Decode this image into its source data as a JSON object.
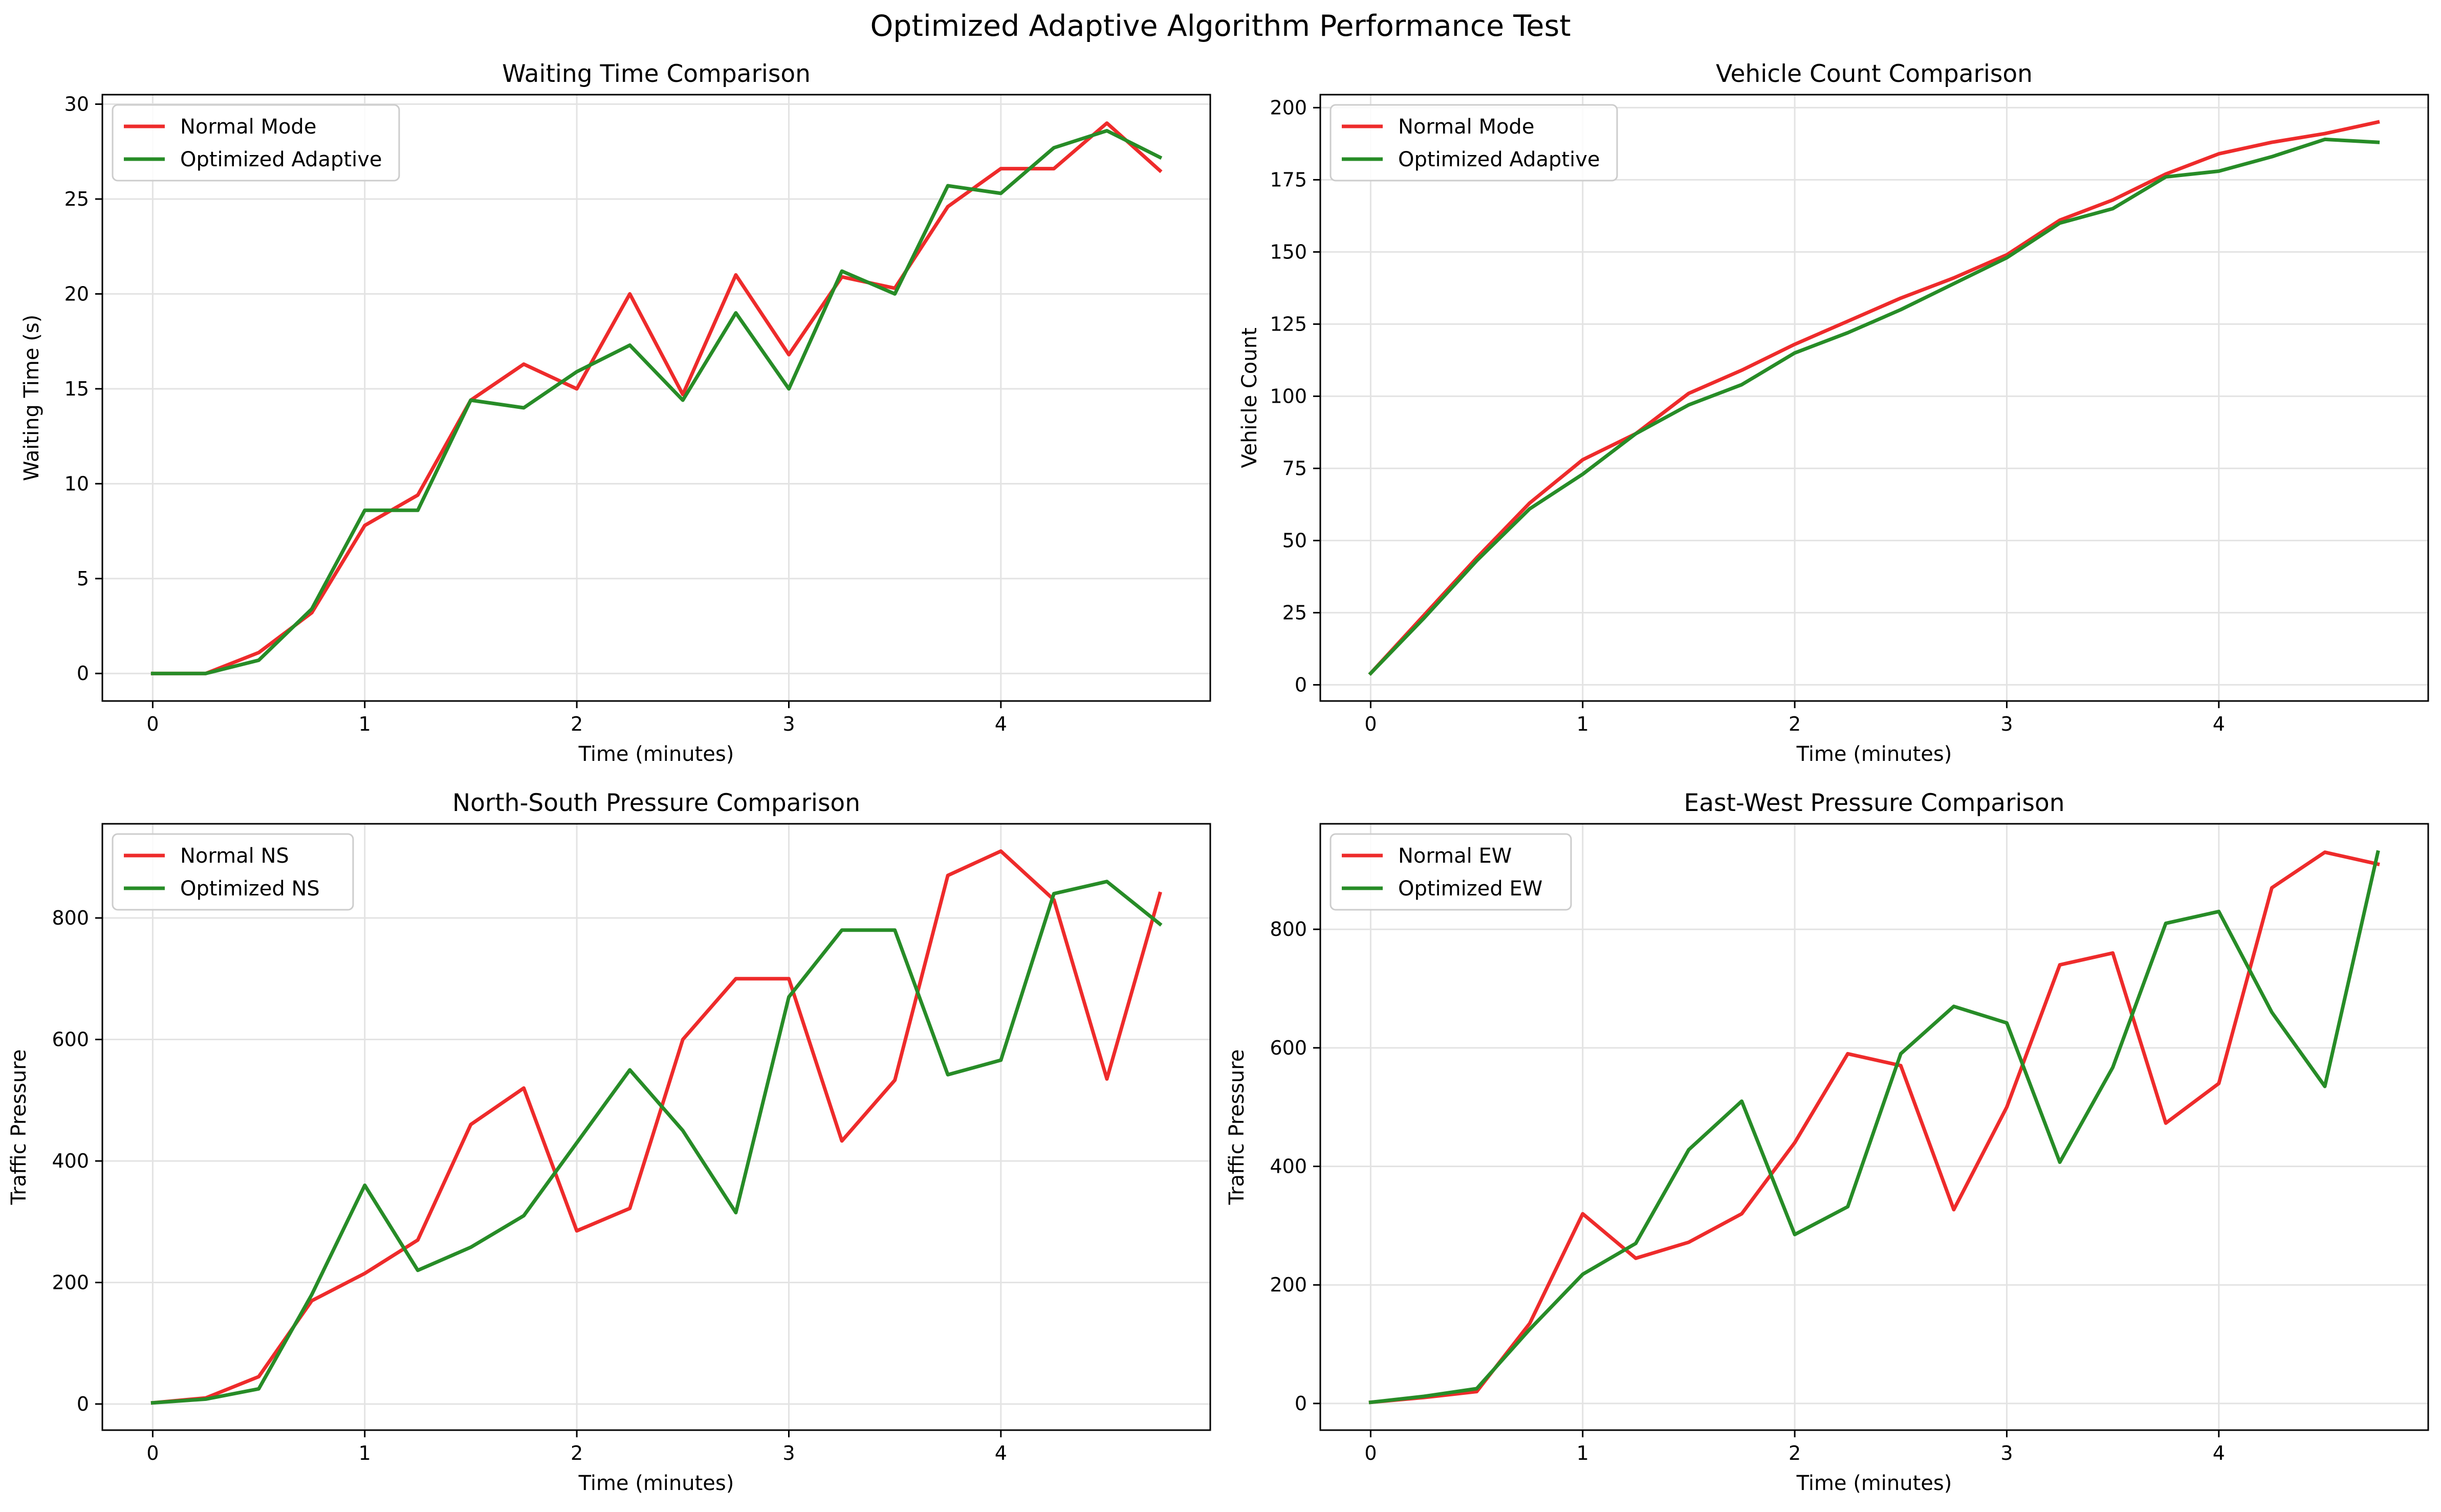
{
  "figure": {
    "title": "Optimized Adaptive Algorithm Performance Test"
  },
  "colors": {
    "normal": "#ee2b2b",
    "optimized": "#278c27",
    "grid": "#e3e3e3",
    "axis": "#000000"
  },
  "chart_data": [
    {
      "type": "line",
      "title": "Waiting Time Comparison",
      "xlabel": "Time (minutes)",
      "ylabel": "Waiting Time (s)",
      "xlim": [
        -0.2375,
        4.9875
      ],
      "ylim": [
        -1.45,
        30.5
      ],
      "xticks": [
        0,
        1,
        2,
        3,
        4
      ],
      "yticks": [
        0,
        5,
        10,
        15,
        20,
        25,
        30
      ],
      "grid": true,
      "legend_position": "top-left",
      "x": [
        0,
        0.25,
        0.5,
        0.75,
        1,
        1.25,
        1.5,
        1.75,
        2,
        2.25,
        2.5,
        2.75,
        3,
        3.25,
        3.5,
        3.75,
        4,
        4.25,
        4.5,
        4.75
      ],
      "series": [
        {
          "name": "Normal Mode",
          "values": [
            0,
            0,
            1.1,
            3.2,
            7.8,
            9.4,
            14.4,
            16.3,
            15.0,
            20.0,
            14.7,
            21.0,
            16.8,
            20.9,
            20.3,
            24.6,
            26.6,
            26.6,
            29.0,
            26.5
          ]
        },
        {
          "name": "Optimized Adaptive",
          "values": [
            0,
            0,
            0.7,
            3.4,
            8.6,
            8.6,
            14.4,
            14.0,
            15.9,
            17.3,
            14.4,
            19.0,
            15.0,
            21.2,
            20.0,
            25.7,
            25.3,
            27.7,
            28.6,
            27.2
          ]
        }
      ]
    },
    {
      "type": "line",
      "title": "Vehicle Count Comparison",
      "xlabel": "Time (minutes)",
      "ylabel": "Vehicle Count",
      "xlim": [
        -0.2375,
        4.9875
      ],
      "ylim": [
        -5.6,
        204.5
      ],
      "xticks": [
        0,
        1,
        2,
        3,
        4
      ],
      "yticks": [
        0,
        25,
        50,
        75,
        100,
        125,
        150,
        175,
        200
      ],
      "grid": true,
      "legend_position": "top-left",
      "x": [
        0,
        0.25,
        0.5,
        0.75,
        1,
        1.25,
        1.5,
        1.75,
        2,
        2.25,
        2.5,
        2.75,
        3,
        3.25,
        3.5,
        3.75,
        4,
        4.25,
        4.5,
        4.75
      ],
      "series": [
        {
          "name": "Normal Mode",
          "values": [
            4,
            24,
            44,
            63,
            78,
            87,
            101,
            109,
            118,
            126,
            134,
            141,
            149,
            161,
            168,
            177,
            184,
            188,
            191,
            195
          ]
        },
        {
          "name": "Optimized Adaptive",
          "values": [
            4,
            23,
            43,
            61,
            73,
            87,
            97,
            104,
            115,
            122,
            130,
            139,
            148,
            160,
            165,
            176,
            178,
            183,
            189,
            188
          ]
        }
      ]
    },
    {
      "type": "line",
      "title": "North-South Pressure Comparison",
      "xlabel": "Time (minutes)",
      "ylabel": "Traffic Pressure",
      "xlim": [
        -0.2375,
        4.9875
      ],
      "ylim": [
        -43,
        955
      ],
      "xticks": [
        0,
        1,
        2,
        3,
        4
      ],
      "yticks": [
        0,
        200,
        400,
        600,
        800
      ],
      "grid": true,
      "legend_position": "top-left",
      "x": [
        0,
        0.25,
        0.5,
        0.75,
        1,
        1.25,
        1.5,
        1.75,
        2,
        2.25,
        2.5,
        2.75,
        3,
        3.25,
        3.5,
        3.75,
        4,
        4.25,
        4.5,
        4.75
      ],
      "series": [
        {
          "name": "Normal NS",
          "values": [
            2,
            10,
            45,
            170,
            215,
            270,
            460,
            520,
            285,
            322,
            600,
            700,
            700,
            433,
            533,
            870,
            910,
            830,
            535,
            840
          ]
        },
        {
          "name": "Optimized NS",
          "values": [
            2,
            8,
            25,
            180,
            360,
            220,
            258,
            310,
            430,
            550,
            450,
            315,
            670,
            780,
            780,
            542,
            566,
            840,
            860,
            790
          ]
        }
      ]
    },
    {
      "type": "line",
      "title": "East-West Pressure Comparison",
      "xlabel": "Time (minutes)",
      "ylabel": "Traffic Pressure",
      "xlim": [
        -0.2375,
        4.9875
      ],
      "ylim": [
        -45,
        978
      ],
      "xticks": [
        0,
        1,
        2,
        3,
        4
      ],
      "yticks": [
        0,
        200,
        400,
        600,
        800
      ],
      "grid": true,
      "legend_position": "top-left",
      "x": [
        0,
        0.25,
        0.5,
        0.75,
        1,
        1.25,
        1.5,
        1.75,
        2,
        2.25,
        2.5,
        2.75,
        3,
        3.25,
        3.5,
        3.75,
        4,
        4.25,
        4.5,
        4.75
      ],
      "series": [
        {
          "name": "Normal EW",
          "values": [
            2,
            10,
            20,
            135,
            320,
            245,
            272,
            320,
            440,
            590,
            570,
            327,
            500,
            740,
            760,
            473,
            540,
            870,
            930,
            910
          ]
        },
        {
          "name": "Optimized EW",
          "values": [
            2,
            12,
            25,
            125,
            218,
            270,
            428,
            510,
            285,
            332,
            590,
            670,
            642,
            407,
            567,
            810,
            830,
            660,
            535,
            930
          ]
        }
      ]
    }
  ]
}
